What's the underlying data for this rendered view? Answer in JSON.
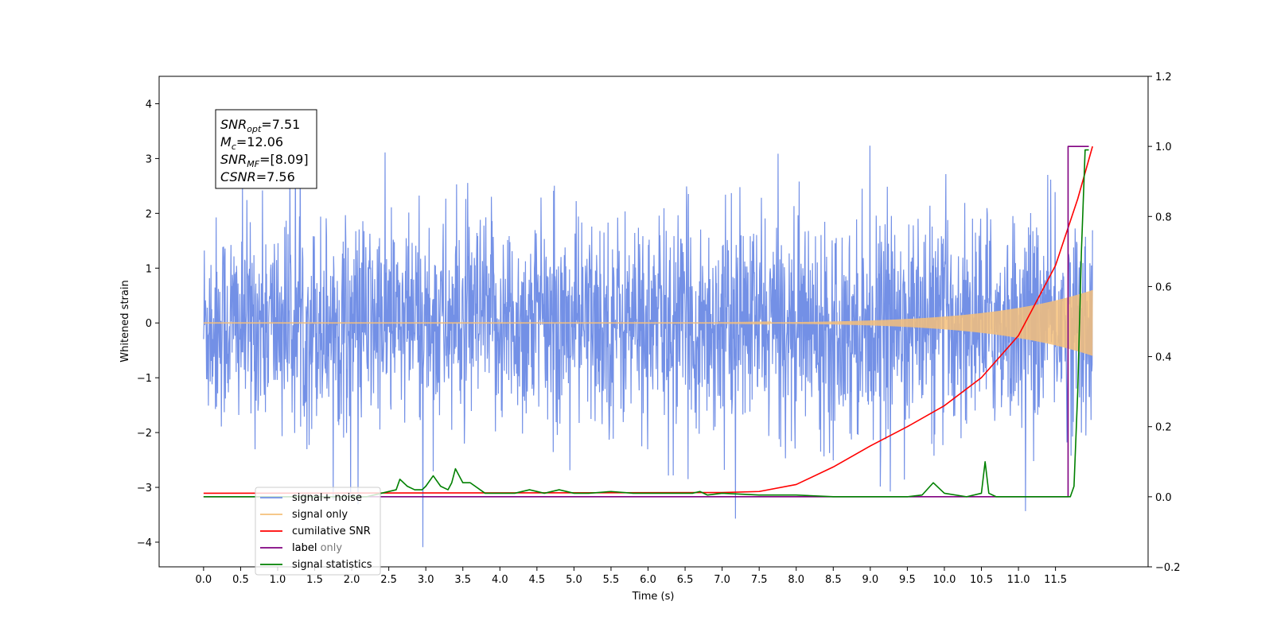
{
  "chart_data": {
    "type": "line",
    "xlabel": "Time (s)",
    "ylabel": "Whitened strain",
    "xlim": [
      -0.6,
      12.75
    ],
    "ylim": [
      -4.45,
      4.5
    ],
    "ylim_right": [
      -0.2,
      1.2
    ],
    "x_ticks": [
      "0.0",
      "0.5",
      "1.0",
      "1.5",
      "2.0",
      "2.5",
      "3.0",
      "3.5",
      "4.0",
      "4.5",
      "5.0",
      "5.5",
      "6.0",
      "6.5",
      "7.0",
      "7.5",
      "8.0",
      "8.5",
      "9.0",
      "9.5",
      "10.0",
      "10.5",
      "11.0",
      "11.5"
    ],
    "y_ticks": [
      "4",
      "3",
      "2",
      "1",
      "0",
      "−1",
      "−2",
      "−3",
      "−4"
    ],
    "y_ticks_right": [
      "1.2",
      "1.0",
      "0.8",
      "0.6",
      "0.4",
      "0.2",
      "0.0",
      "−0.2"
    ],
    "annotation": {
      "lines": [
        {
          "main": "SNR",
          "sub": "opt",
          "rest": "=7.51"
        },
        {
          "main": "M",
          "sub": "c",
          "rest": "=12.06"
        },
        {
          "main": "SNR",
          "sub": "MF",
          "rest": "=[8.09]"
        },
        {
          "main": "CSNR",
          "sub": "",
          "rest": "=7.56"
        }
      ]
    },
    "legend": {
      "placement": "lower-left",
      "entries": [
        "signal+ noise",
        "signal only",
        "cumilative SNR",
        "label",
        "signal statistics"
      ],
      "hidden_behind": "label only"
    },
    "series": [
      {
        "name": "signal+ noise",
        "axis": "left",
        "color": "#7390e6",
        "kind": "noise",
        "x_range": [
          0.0,
          12.0
        ],
        "amplitude_rms": 1.0
      },
      {
        "name": "signal only",
        "axis": "left",
        "color": "#f4c07a",
        "kind": "chirp",
        "x_range": [
          0.0,
          12.0
        ],
        "final_amplitude": 0.6
      },
      {
        "name": "cumilative SNR",
        "axis": "right",
        "color": "#ff0000",
        "x": [
          0.0,
          7.0,
          7.5,
          8.0,
          8.5,
          9.0,
          9.5,
          10.0,
          10.5,
          11.0,
          11.5,
          11.8,
          12.0
        ],
        "y": [
          0.01,
          0.012,
          0.015,
          0.035,
          0.085,
          0.145,
          0.2,
          0.26,
          0.34,
          0.46,
          0.66,
          0.85,
          1.0
        ]
      },
      {
        "name": "label",
        "axis": "right",
        "color": "#800080",
        "x": [
          0.0,
          11.6,
          11.6,
          11.67,
          11.67,
          11.95
        ],
        "y": [
          0.0,
          0.0,
          0.0,
          0.0,
          1.0,
          1.0
        ]
      },
      {
        "name": "signal statistics",
        "axis": "right",
        "color": "#008000",
        "x": [
          0.0,
          2.2,
          2.4,
          2.6,
          2.65,
          2.75,
          2.85,
          2.95,
          3.0,
          3.1,
          3.2,
          3.3,
          3.35,
          3.4,
          3.5,
          3.6,
          3.8,
          4.0,
          4.2,
          4.4,
          4.6,
          4.8,
          5.0,
          5.2,
          5.5,
          5.8,
          6.0,
          6.3,
          6.6,
          6.7,
          6.8,
          7.0,
          7.5,
          8.0,
          8.5,
          9.0,
          9.5,
          9.7,
          9.85,
          9.95,
          10.0,
          10.3,
          10.5,
          10.55,
          10.6,
          10.7,
          11.0,
          11.5,
          11.7,
          11.75,
          11.8,
          11.85,
          11.9,
          11.95
        ],
        "y": [
          0.0,
          0.0,
          0.01,
          0.02,
          0.05,
          0.03,
          0.02,
          0.02,
          0.03,
          0.06,
          0.03,
          0.02,
          0.04,
          0.08,
          0.04,
          0.04,
          0.01,
          0.01,
          0.01,
          0.02,
          0.01,
          0.02,
          0.01,
          0.01,
          0.015,
          0.01,
          0.01,
          0.01,
          0.01,
          0.015,
          0.005,
          0.01,
          0.005,
          0.005,
          0.0,
          0.0,
          0.0,
          0.005,
          0.04,
          0.02,
          0.01,
          0.0,
          0.01,
          0.1,
          0.01,
          0.0,
          0.0,
          0.0,
          0.0,
          0.03,
          0.3,
          0.7,
          0.99,
          0.99
        ]
      }
    ]
  }
}
